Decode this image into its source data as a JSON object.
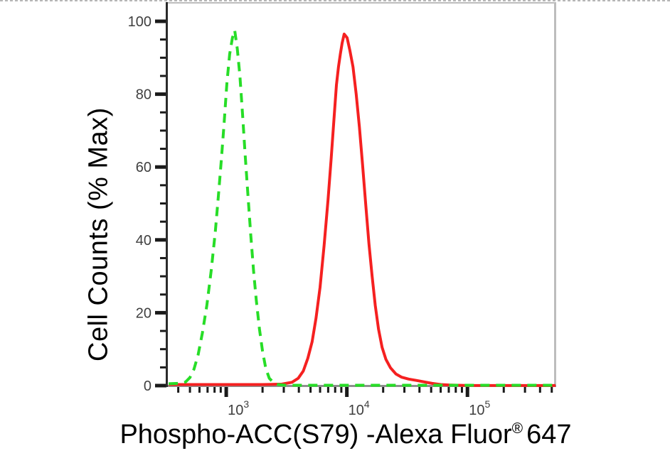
{
  "figure": {
    "y_axis_title": "Cell Counts (% Max)",
    "x_axis_title": {
      "main": "Phospho-ACC(S79) -Alexa Fluor",
      "registered_mark": "®",
      "suffix": "647"
    }
  },
  "colors": {
    "background": "#ffffff",
    "frame_light": "#bdbdbd",
    "x_axis_line": "#8f8f8f",
    "y_axis_line": "#2b2b2b",
    "tick": "#1a1a1a",
    "tick_label": "#3f3f3f",
    "title_text": "#000000",
    "green_series": "#27dd27",
    "red_series": "#f52020",
    "marching_ants": "#b6b6b6"
  },
  "chart_data": {
    "type": "line",
    "subtype": "flow-cytometry-histogram-overlay",
    "title": "",
    "xlabel": "Phospho-ACC(S79) -Alexa Fluor® 647",
    "ylabel": "Cell Counts (% Max)",
    "grid": false,
    "legend": "none",
    "x_axis": {
      "scale": "log",
      "min": 328,
      "max": 537000,
      "major_ticks": [
        {
          "value": 1000,
          "base": "10",
          "exponent": "3"
        },
        {
          "value": 10000,
          "base": "10",
          "exponent": "4"
        },
        {
          "value": 100000,
          "base": "10",
          "exponent": "5"
        }
      ],
      "minor_ticks": [
        400,
        500,
        600,
        700,
        800,
        900,
        2000,
        3000,
        4000,
        5000,
        6000,
        7000,
        8000,
        9000,
        20000,
        30000,
        40000,
        50000,
        60000,
        70000,
        80000,
        90000,
        200000,
        300000,
        400000,
        500000
      ]
    },
    "y_axis": {
      "scale": "linear",
      "min": 0,
      "max": 100,
      "major_ticks": [
        {
          "value": 0,
          "label": "0"
        },
        {
          "value": 20,
          "label": "20"
        },
        {
          "value": 40,
          "label": "40"
        },
        {
          "value": 60,
          "label": "60"
        },
        {
          "value": 80,
          "label": "80"
        },
        {
          "value": 100,
          "label": "100"
        }
      ],
      "minor_ticks": [
        5,
        10,
        15,
        25,
        30,
        35,
        45,
        50,
        55,
        65,
        70,
        75,
        85,
        90,
        95
      ]
    },
    "series": [
      {
        "id": "red-solid",
        "name": "red solid curve",
        "style": "solid",
        "color": "#f52020",
        "width": 4,
        "dash": null,
        "peak": {
          "x": 9500,
          "y": 96.5
        },
        "points": [
          [
            333,
            0.3
          ],
          [
            2000,
            0.3
          ],
          [
            2900,
            0.4
          ],
          [
            3500,
            0.9
          ],
          [
            3950,
            2
          ],
          [
            4350,
            4
          ],
          [
            4750,
            7.5
          ],
          [
            5150,
            12
          ],
          [
            5550,
            18.5
          ],
          [
            6000,
            27
          ],
          [
            6480,
            38.5
          ],
          [
            6980,
            51
          ],
          [
            7400,
            62
          ],
          [
            7820,
            73
          ],
          [
            8200,
            82.5
          ],
          [
            8520,
            87.5
          ],
          [
            8830,
            91
          ],
          [
            9140,
            94
          ],
          [
            9500,
            96.5
          ],
          [
            10050,
            95.5
          ],
          [
            10600,
            92
          ],
          [
            11250,
            87.5
          ],
          [
            11950,
            80
          ],
          [
            12700,
            71
          ],
          [
            13500,
            60.5
          ],
          [
            14350,
            49.5
          ],
          [
            15250,
            39
          ],
          [
            16200,
            30
          ],
          [
            17200,
            22
          ],
          [
            18300,
            15.5
          ],
          [
            19600,
            10.5
          ],
          [
            21100,
            7.2
          ],
          [
            23000,
            4.9
          ],
          [
            25500,
            3.2
          ],
          [
            28500,
            2.3
          ],
          [
            32500,
            1.8
          ],
          [
            38000,
            1.4
          ],
          [
            44000,
            1
          ],
          [
            51000,
            0.6
          ],
          [
            60000,
            0.3
          ],
          [
            72000,
            0.15
          ],
          [
            95000,
            0.05
          ],
          [
            537000,
            0.02
          ]
        ]
      },
      {
        "id": "green-dashed",
        "name": "green dashed curve",
        "style": "dashed",
        "color": "#27dd27",
        "width": 4,
        "dash": [
          13,
          9
        ],
        "peak": {
          "x": 1175,
          "y": 97.5
        },
        "points": [
          [
            333,
            0.5
          ],
          [
            400,
            0.6
          ],
          [
            460,
            1
          ],
          [
            500,
            2.2
          ],
          [
            540,
            4.5
          ],
          [
            585,
            8.5
          ],
          [
            635,
            14.5
          ],
          [
            690,
            22
          ],
          [
            750,
            31.5
          ],
          [
            810,
            42
          ],
          [
            858,
            51.5
          ],
          [
            908,
            61.5
          ],
          [
            958,
            71.5
          ],
          [
            1012,
            83
          ],
          [
            1068,
            91
          ],
          [
            1125,
            95.5
          ],
          [
            1175,
            97.5
          ],
          [
            1235,
            92.5
          ],
          [
            1298,
            85
          ],
          [
            1365,
            74.5
          ],
          [
            1438,
            63
          ],
          [
            1515,
            52
          ],
          [
            1595,
            41.5
          ],
          [
            1685,
            31.5
          ],
          [
            1775,
            23.5
          ],
          [
            1885,
            15.5
          ],
          [
            2000,
            9.5
          ],
          [
            2125,
            4.8
          ],
          [
            2275,
            2
          ],
          [
            2470,
            0.8
          ],
          [
            2700,
            0.3
          ],
          [
            3100,
            0.1
          ],
          [
            537000,
            0.1
          ]
        ]
      }
    ]
  }
}
